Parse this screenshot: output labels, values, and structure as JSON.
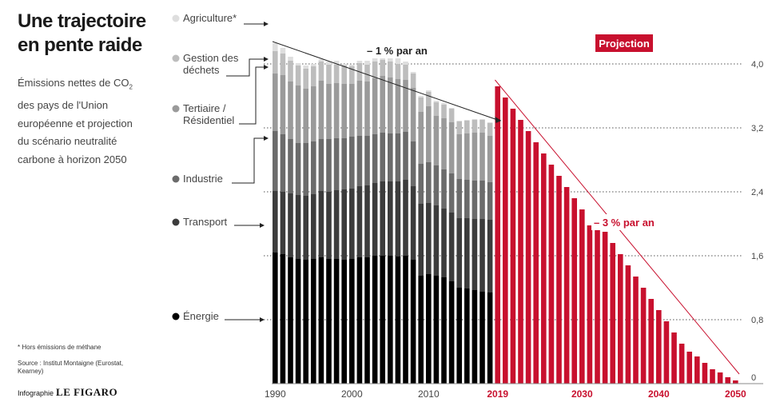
{
  "title": "Une trajectoire en pente raide",
  "subtitle_pre": "Émissions nettes de CO",
  "subtitle_sub": "2",
  "subtitle_post": " des pays de l'Union européenne et projection du scénario neutralité carbone à horizon 2050",
  "footnote": "* Hors émissions de méthane",
  "source": "Source : Institut Montaigne (Eurostat, Kearney)",
  "credit_prefix": "Infographie",
  "credit_brand": "LE FIGARO",
  "colors": {
    "energie": "#000000",
    "transport": "#3c3c3c",
    "industrie": "#6b6b6b",
    "tertiaire": "#9a9a9a",
    "dechets": "#bdbdbd",
    "agriculture": "#dedede",
    "projection": "#c8102e"
  },
  "chart_data": {
    "type": "bar",
    "stacked": true,
    "x": [
      1990,
      1991,
      1992,
      1993,
      1994,
      1995,
      1996,
      1997,
      1998,
      1999,
      2000,
      2001,
      2002,
      2003,
      2004,
      2005,
      2006,
      2007,
      2008,
      2009,
      2010,
      2011,
      2012,
      2013,
      2014,
      2015,
      2016,
      2017,
      2018
    ],
    "series": [
      {
        "name": "Énergie",
        "values": [
          1.64,
          1.62,
          1.58,
          1.56,
          1.55,
          1.56,
          1.58,
          1.56,
          1.56,
          1.55,
          1.56,
          1.58,
          1.58,
          1.6,
          1.6,
          1.6,
          1.59,
          1.6,
          1.55,
          1.35,
          1.37,
          1.35,
          1.33,
          1.28,
          1.2,
          1.19,
          1.17,
          1.15,
          1.14
        ]
      },
      {
        "name": "Transport",
        "values": [
          0.77,
          0.78,
          0.8,
          0.8,
          0.8,
          0.81,
          0.83,
          0.84,
          0.86,
          0.88,
          0.88,
          0.89,
          0.9,
          0.91,
          0.93,
          0.93,
          0.94,
          0.95,
          0.92,
          0.9,
          0.89,
          0.88,
          0.86,
          0.86,
          0.87,
          0.88,
          0.89,
          0.91,
          0.91
        ]
      },
      {
        "name": "Industrie",
        "values": [
          0.75,
          0.72,
          0.68,
          0.65,
          0.66,
          0.66,
          0.65,
          0.66,
          0.65,
          0.64,
          0.65,
          0.63,
          0.62,
          0.61,
          0.61,
          0.6,
          0.6,
          0.6,
          0.56,
          0.5,
          0.51,
          0.5,
          0.49,
          0.49,
          0.49,
          0.48,
          0.48,
          0.48,
          0.47
        ]
      },
      {
        "name": "Tertiaire / Résidentiel",
        "values": [
          0.72,
          0.74,
          0.72,
          0.72,
          0.68,
          0.69,
          0.73,
          0.69,
          0.69,
          0.68,
          0.66,
          0.69,
          0.68,
          0.7,
          0.71,
          0.7,
          0.68,
          0.65,
          0.67,
          0.65,
          0.7,
          0.62,
          0.64,
          0.64,
          0.56,
          0.58,
          0.6,
          0.6,
          0.58
        ]
      },
      {
        "name": "Gestion des déchets",
        "values": [
          0.28,
          0.27,
          0.26,
          0.25,
          0.25,
          0.25,
          0.24,
          0.24,
          0.23,
          0.23,
          0.22,
          0.22,
          0.21,
          0.21,
          0.2,
          0.2,
          0.19,
          0.19,
          0.18,
          0.18,
          0.18,
          0.17,
          0.17,
          0.17,
          0.16,
          0.16,
          0.16,
          0.16,
          0.16
        ]
      },
      {
        "name": "Agriculture*",
        "values": [
          0.1,
          0.07,
          0.05,
          0.03,
          0.04,
          0.03,
          0.03,
          0.04,
          0.05,
          0.02,
          0.02,
          0.03,
          0.05,
          0.06,
          0.07,
          0.08,
          0.07,
          0.04,
          0.02,
          0.02,
          0.02,
          0.02,
          0.02,
          0.01,
          0.01,
          0.01,
          0.01,
          0.01,
          0.01
        ]
      }
    ],
    "projection": {
      "name": "Projection",
      "x": [
        2019,
        2020,
        2021,
        2022,
        2023,
        2024,
        2025,
        2026,
        2027,
        2028,
        2029,
        2030,
        2031,
        2032,
        2033,
        2034,
        2035,
        2036,
        2037,
        2038,
        2039,
        2040,
        2041,
        2042,
        2043,
        2044,
        2045,
        2046,
        2047,
        2048,
        2049,
        2050
      ],
      "values": [
        3.72,
        3.58,
        3.44,
        3.3,
        3.16,
        3.02,
        2.88,
        2.74,
        2.6,
        2.46,
        2.32,
        2.18,
        1.98,
        1.98,
        1.9,
        1.76,
        1.62,
        1.48,
        1.34,
        1.2,
        1.06,
        0.92,
        0.78,
        0.64,
        0.5,
        0.4,
        0.34,
        0.26,
        0.18,
        0.14,
        0.08,
        0.04
      ]
    },
    "annotations": {
      "historical_trend": "– 1 % par an",
      "projection_trend": "– 3 % par an",
      "projection_label": "Projection"
    },
    "ylim": [
      0,
      4.3
    ],
    "yticks": [
      "0",
      "0,8",
      "1,6",
      "2,4",
      "3,2",
      "4,0"
    ],
    "xticks": [
      "1990",
      "2000",
      "2010",
      "2019",
      "2030",
      "2040",
      "2050"
    ],
    "xticks_highlight": [
      "2019",
      "2030",
      "2040",
      "2050"
    ],
    "ylabel": "",
    "xlabel": "",
    "grid": "dotted horizontal",
    "legend": "left, labels with arrows"
  }
}
